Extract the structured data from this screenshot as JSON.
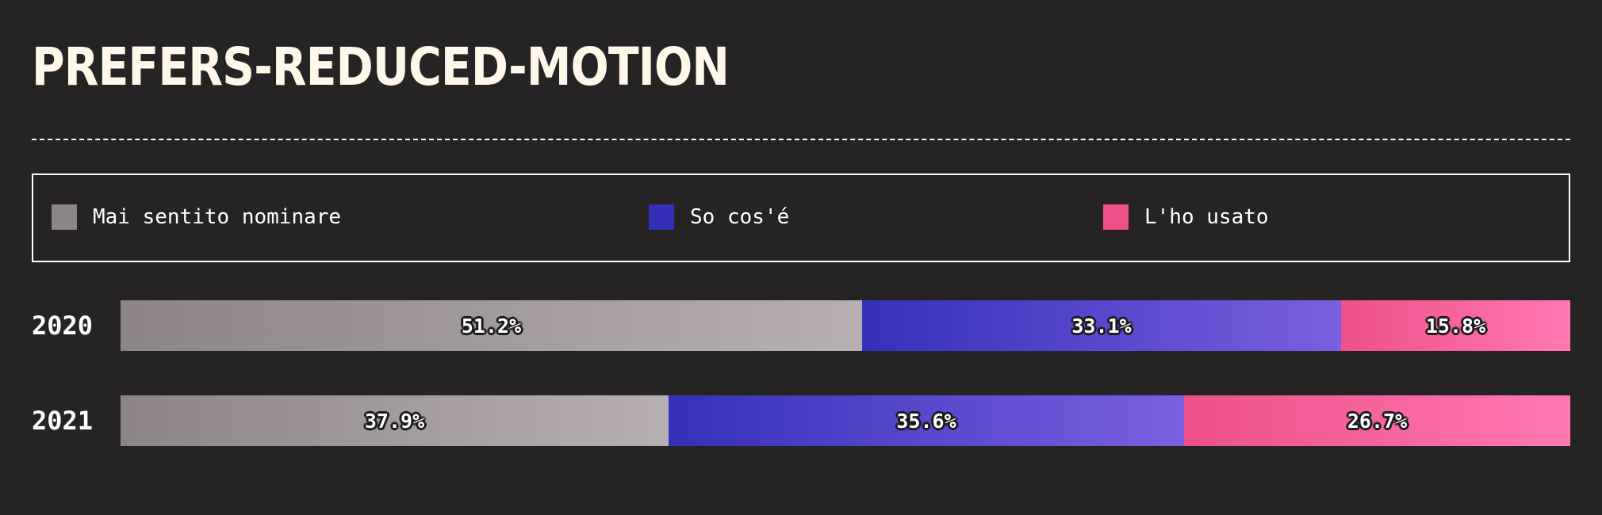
{
  "title": "PREFERS-REDUCED-MOTION",
  "colors": {
    "background": "#262324",
    "title": "#fff7ea",
    "never_heard_start": "#8c8488",
    "never_heard_end": "#b7afb2",
    "know_start": "#3431b8",
    "know_end": "#7b5fe0",
    "used_start": "#ee5089",
    "used_end": "#ff78b4"
  },
  "chart_data": {
    "type": "bar",
    "orientation": "horizontal",
    "stacked": true,
    "normalized": true,
    "title": "PREFERS-REDUCED-MOTION",
    "categories": [
      "2020",
      "2021"
    ],
    "series": [
      {
        "key": "never_heard",
        "name": "Mai sentito nominare",
        "values": [
          51.2,
          37.9
        ],
        "labels": [
          "51.2%",
          "37.9%"
        ]
      },
      {
        "key": "know",
        "name": "So cos'é",
        "values": [
          33.1,
          35.6
        ],
        "labels": [
          "33.1%",
          "35.6%"
        ]
      },
      {
        "key": "used",
        "name": "L'ho usato",
        "values": [
          15.8,
          26.7
        ],
        "labels": [
          "15.8%",
          "26.7%"
        ]
      }
    ],
    "xlabel": "",
    "ylabel": "",
    "legend_position": "top"
  }
}
